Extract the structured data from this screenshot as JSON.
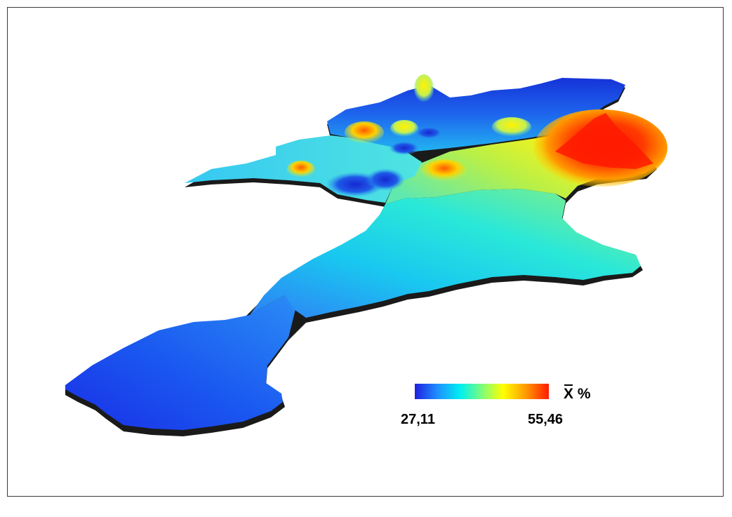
{
  "legend": {
    "variable_symbol": "X",
    "unit": "%",
    "min_label": "27,11",
    "max_label": "55,46",
    "min_value": 27.11,
    "max_value": 55.46,
    "colormap": [
      "#1f1fe0",
      "#1e90ff",
      "#00f0f0",
      "#7cfc7c",
      "#ffff00",
      "#ff9900",
      "#ff1a00"
    ]
  }
}
